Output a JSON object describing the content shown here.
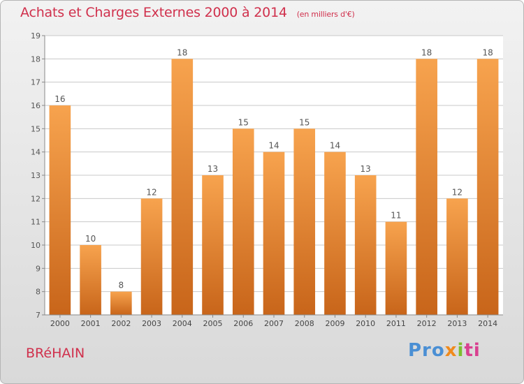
{
  "header": {
    "title": "Achats et Charges Externes 2000 à 2014",
    "unit": "(en milliers d'€)"
  },
  "footer": {
    "commune": "BRéHAIN",
    "logo": [
      "Pro",
      "x",
      "i",
      "ti"
    ]
  },
  "colors": {
    "bar_light": "#f7a34e",
    "bar_dark": "#c8651a",
    "title": "#d0304c",
    "grid": "#c8c8c8"
  },
  "chart_data": {
    "type": "bar",
    "categories": [
      "2000",
      "2001",
      "2002",
      "2003",
      "2004",
      "2005",
      "2006",
      "2007",
      "2008",
      "2009",
      "2010",
      "2011",
      "2012",
      "2013",
      "2014"
    ],
    "values": [
      16,
      10,
      8,
      12,
      18,
      13,
      15,
      14,
      15,
      14,
      13,
      11,
      18,
      12,
      18
    ],
    "ylim": [
      7,
      19
    ],
    "yticks": [
      7,
      8,
      9,
      10,
      11,
      12,
      13,
      14,
      15,
      16,
      17,
      18,
      19
    ],
    "grid": true,
    "data_labels": true
  }
}
